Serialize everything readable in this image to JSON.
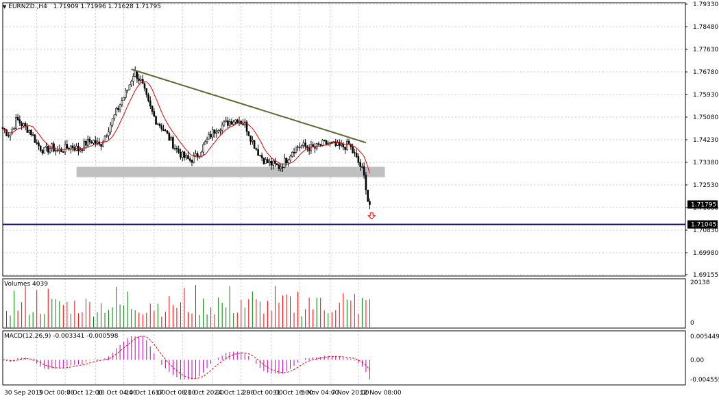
{
  "chart_data": {
    "type": "candlestick",
    "symbol": "EURNZD.,H4",
    "ohlc": {
      "open": "1.71909",
      "high": "1.71996",
      "low": "1.71628",
      "close": "1.71795"
    },
    "price_axis": {
      "ticks": [
        "1.79330",
        "1.78480",
        "1.77630",
        "1.76780",
        "1.75930",
        "1.75080",
        "1.74230",
        "1.73380",
        "1.72530",
        "1.71680",
        "1.70830",
        "1.69980",
        "1.69155"
      ],
      "range": [
        1.69155,
        1.7933
      ]
    },
    "current_price_label": "1.71795",
    "horizontal_line": {
      "value": 1.71045,
      "label": "1.71045",
      "color": "#000080"
    },
    "trendline": {
      "from": {
        "date": "15 Oct 08:00",
        "price": 1.7688
      },
      "to": {
        "date": "13 Nov 00:00",
        "price": 1.7412
      },
      "color": "#556b2f"
    },
    "support_zone": {
      "from": "8 Oct 12:00",
      "to": "14 Nov 16:00",
      "low": 1.7282,
      "high": 1.7321,
      "color": "#c0c0c0"
    },
    "sell_arrow": {
      "date": "13 Nov 12:00",
      "price": 1.7135,
      "color": "#ff0000"
    },
    "moving_average": {
      "color": "#e00000"
    },
    "volumes": {
      "title": "Volumes 4039",
      "axis_ticks": [
        "20138",
        "0"
      ]
    },
    "macd": {
      "title": "MACD(12,26,9) -0.003341 -0.000598",
      "axis_ticks": [
        "0.005449",
        "0.00",
        "-0.004555"
      ]
    },
    "time_axis": [
      "30 Sep 2019",
      "3 Oct 00:00",
      "7 Oct 12:00",
      "10 Oct 04:00",
      "14 Oct 16:00",
      "17 Oct 08:00",
      "21 Oct 20:00",
      "24 Oct 12:00",
      "29 Oct 00:00",
      "31 Oct 16:00",
      "5 Nov 04:00",
      "7 Nov 20:00",
      "12 Nov 08:00"
    ],
    "close_path": [
      1.7465,
      1.744,
      1.75,
      1.7475,
      1.7455,
      1.7405,
      1.738,
      1.7395,
      1.738,
      1.739,
      1.74,
      1.7385,
      1.741,
      1.742,
      1.74,
      1.745,
      1.7505,
      1.756,
      1.761,
      1.768,
      1.764,
      1.756,
      1.75,
      1.747,
      1.743,
      1.739,
      1.736,
      1.7345,
      1.736,
      1.74,
      1.744,
      1.747,
      1.748,
      1.7495,
      1.75,
      1.748,
      1.742,
      1.737,
      1.734,
      1.733,
      1.732,
      1.735,
      1.739,
      1.74,
      1.7395,
      1.739,
      1.7405,
      1.741,
      1.74,
      1.7395,
      1.7405,
      1.7355,
      1.7305,
      1.718
    ],
    "close_path_start": "30 Sep 00:00",
    "close_path_end": "13 Nov 08:00",
    "colors": {
      "bull": "#008000",
      "bear": "#ff0000",
      "candle": "#000000",
      "macd_hist": "#c000c0",
      "macd_signal": "#ff0000",
      "grid": "#c8c8c8",
      "label_bg": "#000000",
      "label_fg": "#ffffff"
    }
  }
}
